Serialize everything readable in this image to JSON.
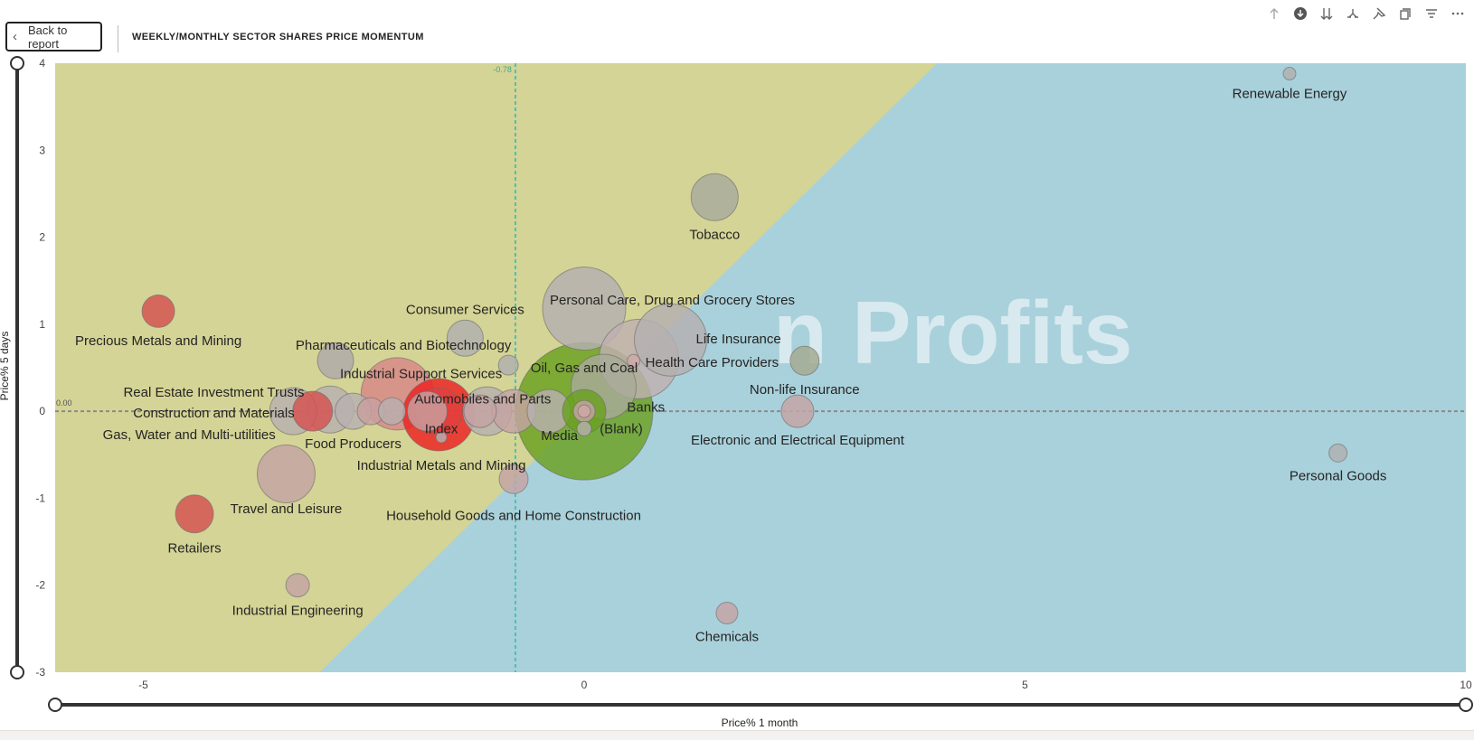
{
  "header": {
    "back_label": "Back to report",
    "title": "WEEKLY/MONTHLY SECTOR SHARES PRICE MOMENTUM",
    "toolbar_icons": [
      "arrow-up-icon",
      "drill-down-icon",
      "expand-all-icon",
      "drill-fork-icon",
      "pin-icon",
      "copy-icon",
      "filter-icon",
      "more-icon"
    ]
  },
  "watermark": {
    "text": "n Profits"
  },
  "colors": {
    "quadrant_left": "#d4d496",
    "quadrant_right": "#a9d1db",
    "bubble_default": "#b0b0b0",
    "bubble_red": "#e03030",
    "bubble_green": "#6aa020",
    "bubble_rose": "#c4a4a4",
    "bubble_olive": "#a4aa8e",
    "reference_line": "#4fc0b0"
  },
  "chart_data": {
    "type": "scatter",
    "title": "WEEKLY/MONTHLY SECTOR SHARES PRICE MOMENTUM",
    "xlabel": "Price% 1 month",
    "ylabel": "Price% 5 days",
    "xlim": [
      -6,
      10
    ],
    "ylim": [
      -3,
      4
    ],
    "xticks": [
      -5,
      0,
      5,
      10
    ],
    "yticks": [
      -3,
      -2,
      -1,
      0,
      1,
      2,
      3,
      4
    ],
    "reference_lines": {
      "x": -0.78,
      "x_label": "-0.78",
      "y": 0,
      "y_label": "0.00"
    },
    "points": [
      {
        "name": "Renewable Energy",
        "x": 8.0,
        "y": 3.88,
        "size": 7,
        "color": "#b0b0b0"
      },
      {
        "name": "Tobacco",
        "x": 1.48,
        "y": 2.46,
        "size": 26,
        "color": "#a9ab9c"
      },
      {
        "name": "Personal Care, Drug and Grocery Stores",
        "x": 0.0,
        "y": 1.18,
        "size": 46,
        "color": "#b4b0b0"
      },
      {
        "name": "Life Insurance",
        "x": 0.98,
        "y": 0.82,
        "size": 40,
        "color": "#b4b0b0"
      },
      {
        "name": "Health Care Providers",
        "x": 0.62,
        "y": 0.6,
        "size": 44,
        "color": "#c0b0b0"
      },
      {
        "name": "",
        "x": 0.56,
        "y": 0.58,
        "size": 7,
        "color": "#d0a8a8"
      },
      {
        "name": "Non-life Insurance",
        "x": 2.5,
        "y": 0.58,
        "size": 16,
        "color": "#a4aa8e"
      },
      {
        "name": "Consumer Services",
        "x": -1.35,
        "y": 0.84,
        "size": 20,
        "color": "#b0b0b0"
      },
      {
        "name": "Precious Metals and Mining",
        "x": -4.83,
        "y": 1.15,
        "size": 18,
        "color": "#d65050"
      },
      {
        "name": "Pharmaceuticals and Biotechnology",
        "x": -2.82,
        "y": 0.58,
        "size": 20,
        "color": "#b0aaaa"
      },
      {
        "name": "",
        "x": -0.86,
        "y": 0.53,
        "size": 11,
        "color": "#b0b0b0"
      },
      {
        "name": "Oil, Gas and Coal",
        "x": 0.22,
        "y": 0.28,
        "size": 36,
        "color": "#a8aa98"
      },
      {
        "name": "Industrial Support Services",
        "x": -2.12,
        "y": 0.2,
        "size": 40,
        "color": "#d88888"
      },
      {
        "name": "Real Estate Investment Trusts",
        "x": -2.88,
        "y": 0.02,
        "size": 26,
        "color": "#b8b0b0"
      },
      {
        "name": "Construction and Materials",
        "x": -3.08,
        "y": 0.0,
        "size": 22,
        "color": "#d65050"
      },
      {
        "name": "",
        "x": -3.3,
        "y": 0.0,
        "size": 26,
        "color": "#b8b0b0"
      },
      {
        "name": "",
        "x": -2.62,
        "y": 0.0,
        "size": 20,
        "color": "#b8b0b0"
      },
      {
        "name": "",
        "x": -2.42,
        "y": 0.0,
        "size": 15,
        "color": "#c8a0a0"
      },
      {
        "name": "Gas, Water and Multi-utilities",
        "x": -2.18,
        "y": 0.0,
        "size": 15,
        "color": "#b8b0b0"
      },
      {
        "name": "Food Producers",
        "x": -1.78,
        "y": 0.0,
        "size": 22,
        "color": "#c8a0a0"
      },
      {
        "name": "Index",
        "x": -1.65,
        "y": -0.04,
        "size": 40,
        "color": "#ee2020"
      },
      {
        "name": "",
        "x": -1.65,
        "y": 0.0,
        "size": 26,
        "color": "#e04040"
      },
      {
        "name": "Automobiles and Parts",
        "x": -1.1,
        "y": 0.0,
        "size": 27,
        "color": "#b8b0b0"
      },
      {
        "name": "",
        "x": -1.18,
        "y": 0.0,
        "size": 18,
        "color": "#c4a4a4"
      },
      {
        "name": "",
        "x": -0.8,
        "y": 0.0,
        "size": 24,
        "color": "#c4a4a4"
      },
      {
        "name": "",
        "x": -0.4,
        "y": 0.0,
        "size": 24,
        "color": "#b8b0b0"
      },
      {
        "name": "Banks",
        "x": 0.0,
        "y": 0.0,
        "size": 76,
        "color": "#6aa020"
      },
      {
        "name": "Media",
        "x": 0.0,
        "y": 0.0,
        "size": 24,
        "color": "#6aa020"
      },
      {
        "name": "(Blank)",
        "x": 0.0,
        "y": 0.0,
        "size": 12,
        "color": "#c4a4a4"
      },
      {
        "name": "",
        "x": 0.0,
        "y": 0.0,
        "size": 7,
        "color": "#d0a8a8"
      },
      {
        "name": "",
        "x": 0.0,
        "y": -0.2,
        "size": 8,
        "color": "#b8b0b0"
      },
      {
        "name": "",
        "x": -1.62,
        "y": -0.3,
        "size": 6,
        "color": "#b8b0b0"
      },
      {
        "name": "Electronic and Electrical Equipment",
        "x": 2.42,
        "y": 0.0,
        "size": 18,
        "color": "#c4a4a4"
      },
      {
        "name": "Personal Goods",
        "x": 8.55,
        "y": -0.48,
        "size": 10,
        "color": "#b0b0b0"
      },
      {
        "name": "Household Goods and Home Construction",
        "x": -0.8,
        "y": -0.78,
        "size": 16,
        "color": "#c4a4a4"
      },
      {
        "name": "Industrial Metals and Mining",
        "x": -3.38,
        "y": -0.72,
        "size": 32,
        "color": "#c4a4a4"
      },
      {
        "name": "Retailers",
        "x": -4.42,
        "y": -1.18,
        "size": 21,
        "color": "#d65050"
      },
      {
        "name": "Travel and Leisure",
        "x": -3.25,
        "y": -2.0,
        "size": 13,
        "color": "#c4a4a4"
      },
      {
        "name": "Chemicals",
        "x": 1.62,
        "y": -2.32,
        "size": 12,
        "color": "#c4a4a4"
      }
    ],
    "labels": [
      {
        "text": "Renewable Energy",
        "x": 8.0,
        "y": 3.65
      },
      {
        "text": "Tobacco",
        "x": 1.48,
        "y": 2.03
      },
      {
        "text": "Personal Care, Drug and Grocery Stores",
        "x": 1.0,
        "y": 1.28
      },
      {
        "text": "Life Insurance",
        "x": 1.75,
        "y": 0.83
      },
      {
        "text": "Health Care Providers",
        "x": 1.45,
        "y": 0.56
      },
      {
        "text": "Non-life Insurance",
        "x": 2.5,
        "y": 0.25
      },
      {
        "text": "Consumer Services",
        "x": -1.35,
        "y": 1.17
      },
      {
        "text": "Precious Metals and Mining",
        "x": -4.83,
        "y": 0.81
      },
      {
        "text": "Pharmaceuticals and Biotechnology",
        "x": -2.05,
        "y": 0.76
      },
      {
        "text": "Oil, Gas and Coal",
        "x": 0.0,
        "y": 0.5
      },
      {
        "text": "Industrial Support Services",
        "x": -1.85,
        "y": 0.43
      },
      {
        "text": "Real Estate Investment Trusts",
        "x": -4.2,
        "y": 0.22
      },
      {
        "text": "Construction and Materials",
        "x": -4.2,
        "y": -0.02
      },
      {
        "text": "Automobiles and Parts",
        "x": -1.15,
        "y": 0.14
      },
      {
        "text": "Banks",
        "x": 0.7,
        "y": 0.05
      },
      {
        "text": "Gas, Water and Multi-utilities",
        "x": -4.48,
        "y": -0.27
      },
      {
        "text": "Index",
        "x": -1.62,
        "y": -0.2
      },
      {
        "text": "(Blank)",
        "x": 0.42,
        "y": -0.2
      },
      {
        "text": "Media",
        "x": -0.28,
        "y": -0.28
      },
      {
        "text": "Food Producers",
        "x": -2.62,
        "y": -0.37
      },
      {
        "text": "Electronic and Electrical Equipment",
        "x": 2.42,
        "y": -0.33
      },
      {
        "text": "Industrial Metals and Mining",
        "x": -1.62,
        "y": -0.62
      },
      {
        "text": "Personal Goods",
        "x": 8.55,
        "y": -0.74
      },
      {
        "text": "Household Goods and Home Construction",
        "x": -0.8,
        "y": -1.2
      },
      {
        "text": "Travel and Leisure",
        "x": -3.38,
        "y": -1.12
      },
      {
        "text": "Retailers",
        "x": -4.42,
        "y": -1.57
      },
      {
        "text": "Industrial Engineering",
        "x": -3.25,
        "y": -2.29
      },
      {
        "text": "Chemicals",
        "x": 1.62,
        "y": -2.59
      }
    ],
    "quadrants": {
      "diagonal": "left area yellow, right area blue",
      "boundary_points": [
        [
          -3.0,
          -3.0
        ],
        [
          4.0,
          4.0
        ]
      ]
    },
    "sliders": {
      "y_range": [
        -3,
        4
      ],
      "x_range": [
        -6,
        10
      ]
    },
    "grid": false,
    "legend": "none"
  }
}
